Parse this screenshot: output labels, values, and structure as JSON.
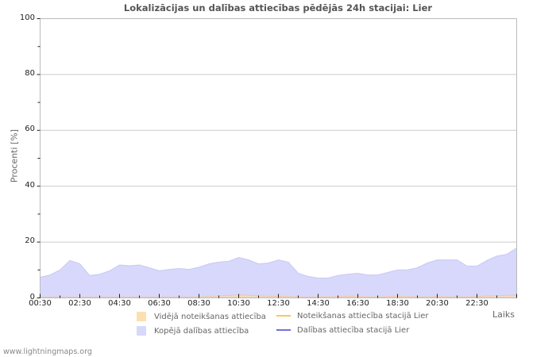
{
  "chart_data": {
    "type": "area",
    "title": "Lokalizācijas un dalības attiecības pēdējās 24h stacijai: Lier",
    "xlabel": "Laiks",
    "ylabel": "Procenti   [%]",
    "ylim": [
      0,
      100
    ],
    "yticks": [
      "0",
      "20",
      "40",
      "60",
      "80",
      "100"
    ],
    "xticks": [
      "00:30",
      "02:30",
      "04:30",
      "06:30",
      "08:30",
      "10:30",
      "12:30",
      "14:30",
      "16:30",
      "18:30",
      "20:30",
      "22:30"
    ],
    "grid": true,
    "x": [
      "00:30",
      "01:00",
      "01:30",
      "02:00",
      "02:30",
      "03:00",
      "03:30",
      "04:00",
      "04:30",
      "05:00",
      "05:30",
      "06:00",
      "06:30",
      "07:00",
      "07:30",
      "08:00",
      "08:30",
      "09:00",
      "09:30",
      "10:00",
      "10:30",
      "11:00",
      "11:30",
      "12:00",
      "12:30",
      "13:00",
      "13:30",
      "14:00",
      "14:30",
      "15:00",
      "15:30",
      "16:00",
      "16:30",
      "17:00",
      "17:30",
      "18:00",
      "18:30",
      "19:00",
      "19:30",
      "20:00",
      "20:30",
      "21:00",
      "21:30",
      "22:00",
      "22:30",
      "23:00",
      "23:30",
      "00:00",
      "00:30"
    ],
    "series": [
      {
        "name": "Kopējā dalības attiecība",
        "style": "area",
        "color": "#d8d8fc",
        "values": [
          7.4,
          8.2,
          10,
          13.4,
          12.2,
          8.0,
          8.5,
          9.7,
          11.8,
          11.5,
          11.8,
          10.8,
          9.7,
          10.2,
          10.5,
          10.2,
          11,
          12.2,
          12.8,
          13.1,
          14.5,
          13.6,
          12.2,
          12.5,
          13.6,
          12.8,
          8.8,
          7.7,
          7.1,
          7.1,
          8,
          8.5,
          8.8,
          8.2,
          8.2,
          9.1,
          10,
          10,
          10.8,
          12.5,
          13.6,
          13.6,
          13.6,
          11.4,
          11.4,
          13.4,
          15,
          15.6,
          17.9
        ]
      },
      {
        "name": "Vidējā noteikšanas attiecība",
        "style": "area",
        "color": "#fce0b0",
        "values": [
          0.3,
          0.3,
          0.3,
          0.3,
          0.3,
          0.3,
          0.3,
          0.3,
          0.3,
          0.3,
          0.3,
          0.3,
          0.3,
          0.3,
          0.3,
          0.3,
          0.4,
          0.5,
          0.7,
          0.9,
          1.1,
          1.0,
          0.7,
          0.6,
          0.6,
          0.5,
          0.4,
          0.3,
          0.4,
          0.4,
          0.5,
          0.6,
          0.6,
          0.4,
          0.4,
          0.5,
          0.6,
          0.5,
          0.4,
          0.4,
          0.5,
          0.4,
          0.4,
          0.4,
          0.5,
          0.7,
          0.8,
          0.9,
          1.0
        ]
      },
      {
        "name": "Noteikšanas attiecība stacijā Lier",
        "style": "line",
        "color": "#f8c860",
        "values": []
      },
      {
        "name": "Dalības attiecība stacijā Lier",
        "style": "line",
        "color": "#7070e0",
        "values": []
      }
    ],
    "legend_position": "bottom"
  },
  "legend": [
    {
      "label": "Vidējā noteikšanas attiecība",
      "kind": "swatch",
      "color": "#fce0b0"
    },
    {
      "label": "Noteikšanas attiecība stacijā Lier",
      "kind": "line",
      "color": "#f8c860"
    },
    {
      "label": "Kopējā dalības attiecība",
      "kind": "swatch",
      "color": "#d8d8fc"
    },
    {
      "label": "Dalības attiecība stacijā Lier",
      "kind": "line",
      "color": "#7070e0"
    }
  ],
  "footer": "www.lightningmaps.org"
}
